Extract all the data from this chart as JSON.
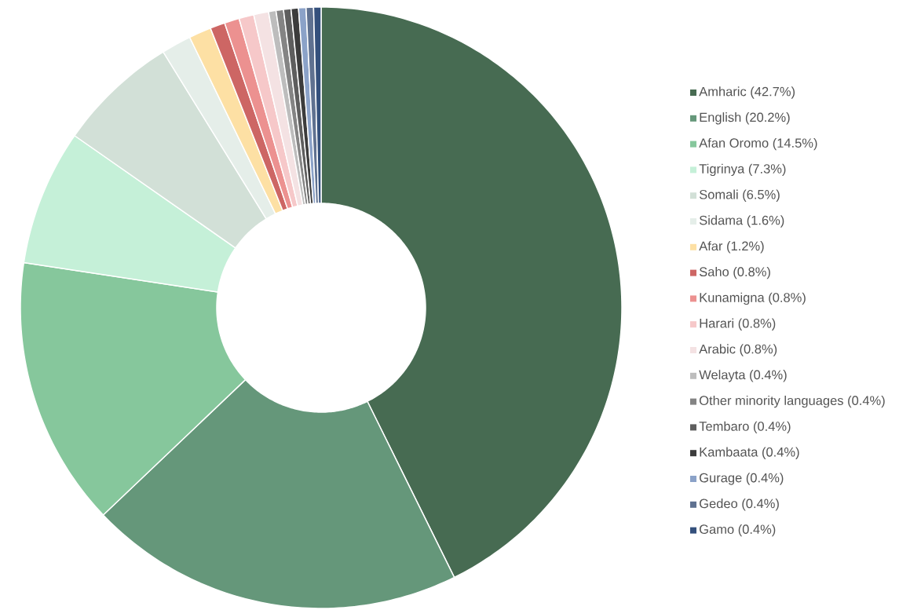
{
  "chart_data": {
    "type": "donut",
    "categories": [
      "Amharic (42.7%)",
      "English (20.2%)",
      "Afan Oromo (14.5%)",
      "Tigrinya (7.3%)",
      "Somali (6.5%)",
      "Sidama (1.6%)",
      "Afar (1.2%)",
      "Saho (0.8%)",
      "Kunamigna (0.8%)",
      "Harari (0.8%)",
      "Arabic (0.8%)",
      "Welayta (0.4%)",
      "Other minority languages (0.4%)",
      "Tembaro (0.4%)",
      "Kambaata (0.4%)",
      "Gurage (0.4%)",
      "Gedeo (0.4%)",
      "Gamo (0.4%)"
    ],
    "values": [
      42.7,
      20.2,
      14.5,
      7.3,
      6.5,
      1.6,
      1.2,
      0.8,
      0.8,
      0.8,
      0.8,
      0.4,
      0.4,
      0.4,
      0.4,
      0.4,
      0.4,
      0.4
    ],
    "colors": [
      "#476b52",
      "#65977a",
      "#86c79c",
      "#c5f0d8",
      "#d2e0d7",
      "#e5eee9",
      "#fde0a4",
      "#cd6664",
      "#ec9190",
      "#f6c8c9",
      "#f4e2e3",
      "#bdbdbd",
      "#848484",
      "#5e5e5e",
      "#3c3c3c",
      "#8ba2c8",
      "#5f7190",
      "#34507c"
    ],
    "legend": "right"
  }
}
